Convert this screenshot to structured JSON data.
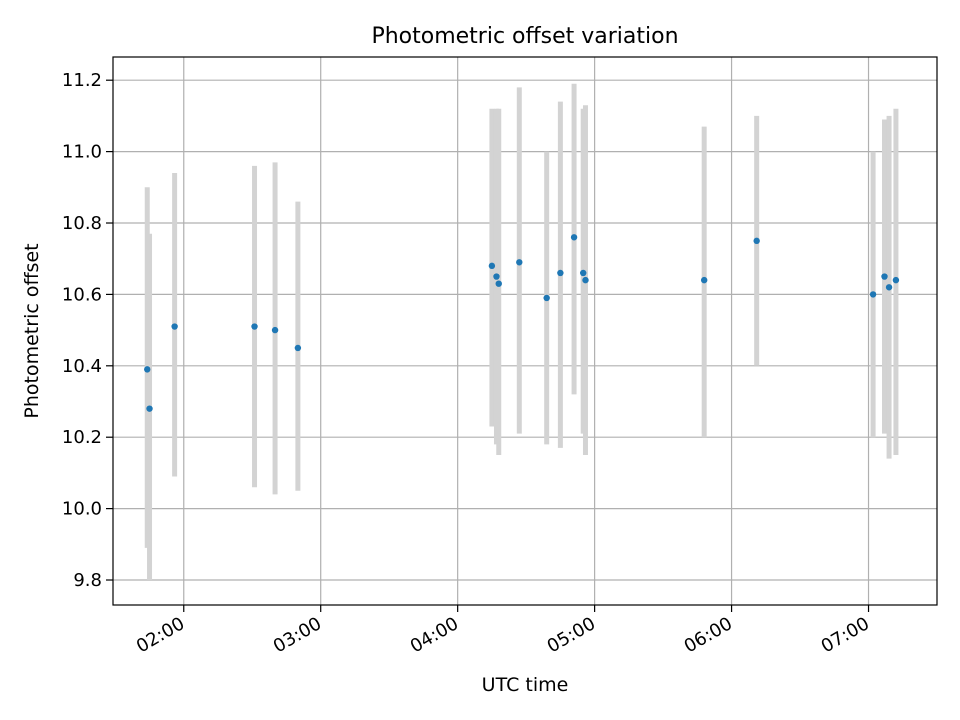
{
  "chart_data": {
    "type": "scatter",
    "title": "Photometric offset variation",
    "xlabel": "UTC time",
    "ylabel": "Photometric offset",
    "x_unit": "UTC time (HH:MM)",
    "xlim": [
      "01:29",
      "07:30"
    ],
    "ylim": [
      9.73,
      11.265
    ],
    "xticks": [
      "02:00",
      "03:00",
      "04:00",
      "05:00",
      "06:00",
      "07:00"
    ],
    "yticks": [
      9.8,
      10.0,
      10.2,
      10.4,
      10.6,
      10.8,
      11.0,
      11.2
    ],
    "ytick_labels": [
      "9.8",
      "10.0",
      "10.2",
      "10.4",
      "10.6",
      "10.8",
      "11.0",
      "11.2"
    ],
    "grid": true,
    "legend": false,
    "colors": {
      "marker": "#1f77b4",
      "errorbar": "#d3d3d3",
      "grid": "#b0b0b0"
    },
    "points": [
      {
        "x": "01:44",
        "y": 10.39,
        "err": [
          9.89,
          10.9
        ]
      },
      {
        "x": "01:45",
        "y": 10.28,
        "err": [
          9.8,
          10.77
        ]
      },
      {
        "x": "01:56",
        "y": 10.51,
        "err": [
          10.09,
          10.94
        ]
      },
      {
        "x": "02:31",
        "y": 10.51,
        "err": [
          10.06,
          10.96
        ]
      },
      {
        "x": "02:40",
        "y": 10.5,
        "err": [
          10.04,
          10.97
        ]
      },
      {
        "x": "02:50",
        "y": 10.45,
        "err": [
          10.05,
          10.86
        ]
      },
      {
        "x": "04:15",
        "y": 10.68,
        "err": [
          10.23,
          11.12
        ]
      },
      {
        "x": "04:17",
        "y": 10.65,
        "err": [
          10.18,
          11.12
        ]
      },
      {
        "x": "04:18",
        "y": 10.63,
        "err": [
          10.15,
          11.12
        ]
      },
      {
        "x": "04:27",
        "y": 10.69,
        "err": [
          10.21,
          11.18
        ]
      },
      {
        "x": "04:39",
        "y": 10.59,
        "err": [
          10.18,
          11.0
        ]
      },
      {
        "x": "04:45",
        "y": 10.66,
        "err": [
          10.17,
          11.14
        ]
      },
      {
        "x": "04:51",
        "y": 10.76,
        "err": [
          10.32,
          11.19
        ]
      },
      {
        "x": "04:55",
        "y": 10.66,
        "err": [
          10.21,
          11.12
        ]
      },
      {
        "x": "04:56",
        "y": 10.64,
        "err": [
          10.15,
          11.13
        ]
      },
      {
        "x": "05:48",
        "y": 10.64,
        "err": [
          10.2,
          11.07
        ]
      },
      {
        "x": "06:11",
        "y": 10.75,
        "err": [
          10.4,
          11.1
        ]
      },
      {
        "x": "07:02",
        "y": 10.6,
        "err": [
          10.2,
          11.0
        ]
      },
      {
        "x": "07:07",
        "y": 10.65,
        "err": [
          10.21,
          11.09
        ]
      },
      {
        "x": "07:09",
        "y": 10.62,
        "err": [
          10.14,
          11.1
        ]
      },
      {
        "x": "07:12",
        "y": 10.64,
        "err": [
          10.15,
          11.12
        ]
      }
    ]
  }
}
